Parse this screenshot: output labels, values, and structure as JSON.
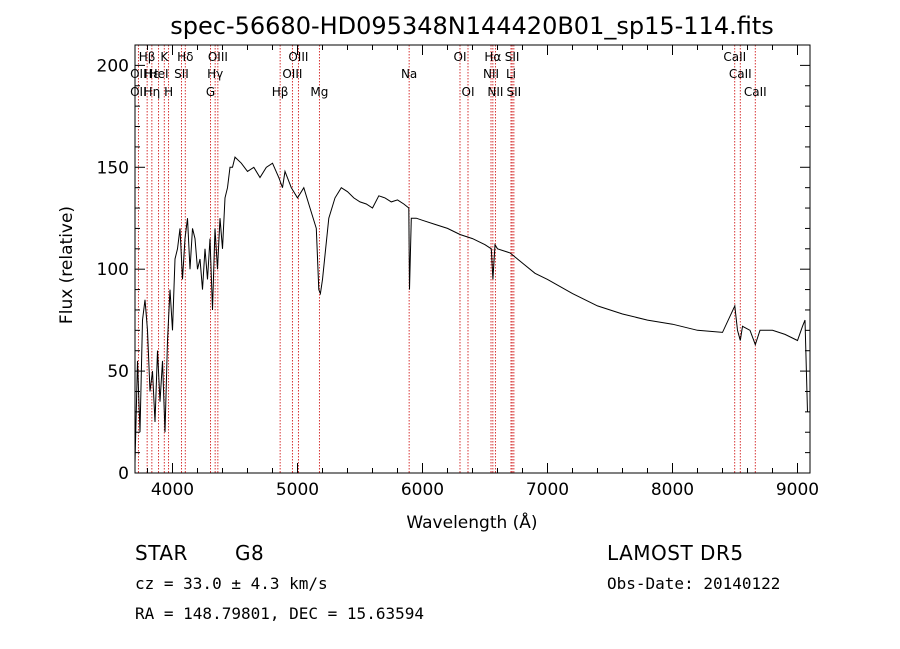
{
  "info": {
    "object_class": "STAR",
    "subclass": "G8",
    "survey": "LAMOST DR5",
    "redshift": "cz = 33.0 ± 4.3 km/s",
    "obs_date": "Obs-Date: 20140122",
    "coords": "RA = 148.79801, DEC =  15.63594"
  },
  "colors": {
    "spectrum": "#000000",
    "line_marker": "#cc0000",
    "axes": "#000000"
  },
  "chart_data": {
    "type": "line",
    "title": "spec-56680-HD095348N144420B01_sp15-114.fits",
    "xlabel": "Wavelength (Å)",
    "ylabel": "Flux (relative)",
    "xlim": [
      3700,
      9100
    ],
    "ylim": [
      0,
      210
    ],
    "xticks": [
      4000,
      5000,
      6000,
      7000,
      8000,
      9000
    ],
    "yticks": [
      0,
      50,
      100,
      150,
      200
    ],
    "grid": false,
    "series": [
      {
        "x": [
          3700,
          3720,
          3740,
          3760,
          3780,
          3800,
          3820,
          3840,
          3860,
          3880,
          3900,
          3920,
          3940,
          3960,
          3980,
          4000,
          4020,
          4040,
          4060,
          4080,
          4100,
          4120,
          4140,
          4160,
          4180,
          4200,
          4220,
          4240,
          4260,
          4280,
          4300,
          4320,
          4340,
          4360,
          4380,
          4400,
          4420,
          4440,
          4460,
          4480,
          4500,
          4550,
          4600,
          4650,
          4700,
          4750,
          4800,
          4850,
          4880,
          4900,
          4950,
          5000,
          5050,
          5100,
          5150,
          5170,
          5183,
          5200,
          5250,
          5300,
          5350,
          5400,
          5450,
          5500,
          5550,
          5600,
          5650,
          5700,
          5750,
          5800,
          5850,
          5890,
          5896,
          5910,
          5950,
          6000,
          6100,
          6200,
          6300,
          6400,
          6500,
          6550,
          6563,
          6580,
          6600,
          6700,
          6800,
          6900,
          7000,
          7200,
          7400,
          7600,
          7800,
          8000,
          8200,
          8400,
          8498,
          8520,
          8542,
          8560,
          8620,
          8662,
          8700,
          8800,
          8900,
          9000,
          9040,
          9060,
          9080
        ],
        "y": [
          5,
          55,
          20,
          75,
          85,
          70,
          40,
          50,
          25,
          60,
          35,
          55,
          20,
          65,
          90,
          70,
          105,
          110,
          120,
          95,
          115,
          125,
          100,
          120,
          115,
          100,
          105,
          90,
          110,
          95,
          115,
          80,
          120,
          100,
          125,
          110,
          135,
          140,
          150,
          150,
          155,
          152,
          148,
          150,
          145,
          150,
          152,
          145,
          140,
          148,
          140,
          135,
          140,
          130,
          120,
          90,
          88,
          95,
          125,
          135,
          140,
          138,
          135,
          133,
          132,
          130,
          136,
          135,
          133,
          134,
          132,
          130,
          90,
          125,
          125,
          124,
          122,
          120,
          117,
          115,
          112,
          110,
          95,
          112,
          110,
          108,
          103,
          98,
          95,
          88,
          82,
          78,
          75,
          73,
          70,
          69,
          82,
          70,
          65,
          72,
          70,
          63,
          70,
          70,
          68,
          65,
          72,
          75,
          30
        ]
      }
    ],
    "lines": [
      {
        "name": "Hβ",
        "wl": 3797,
        "row": 0
      },
      {
        "name": "OII",
        "wl": 3727,
        "row": 1
      },
      {
        "name": "OII",
        "wl": 3727,
        "row": 2
      },
      {
        "name": "Hε",
        "wl": 3835,
        "row": 1
      },
      {
        "name": "Hη",
        "wl": 3835,
        "row": 2
      },
      {
        "name": "K",
        "wl": 3934,
        "row": 0
      },
      {
        "name": "HeI",
        "wl": 3889,
        "row": 1
      },
      {
        "name": "H",
        "wl": 3969,
        "row": 2
      },
      {
        "name": "Hδ",
        "wl": 4102,
        "row": 0
      },
      {
        "name": "SII",
        "wl": 4072,
        "row": 1
      },
      {
        "name": "OIII",
        "wl": 4363,
        "row": 0
      },
      {
        "name": "Hγ",
        "wl": 4341,
        "row": 1
      },
      {
        "name": "G",
        "wl": 4304,
        "row": 2
      },
      {
        "name": "Hβ",
        "wl": 4861,
        "row": 2
      },
      {
        "name": "OIII",
        "wl": 5007,
        "row": 0
      },
      {
        "name": "OIII",
        "wl": 4959,
        "row": 1
      },
      {
        "name": "Mg",
        "wl": 5175,
        "row": 2
      },
      {
        "name": "Na",
        "wl": 5893,
        "row": 1
      },
      {
        "name": "OI",
        "wl": 6300,
        "row": 0
      },
      {
        "name": "OI",
        "wl": 6364,
        "row": 2
      },
      {
        "name": "Hα",
        "wl": 6563,
        "row": 0
      },
      {
        "name": "SII",
        "wl": 6717,
        "row": 0
      },
      {
        "name": "NII",
        "wl": 6548,
        "row": 1
      },
      {
        "name": "Li",
        "wl": 6708,
        "row": 1
      },
      {
        "name": "NII",
        "wl": 6583,
        "row": 2
      },
      {
        "name": "SII",
        "wl": 6731,
        "row": 2
      },
      {
        "name": "CaII",
        "wl": 8498,
        "row": 0
      },
      {
        "name": "CaII",
        "wl": 8542,
        "row": 1
      },
      {
        "name": "CaII",
        "wl": 8662,
        "row": 2
      }
    ]
  }
}
